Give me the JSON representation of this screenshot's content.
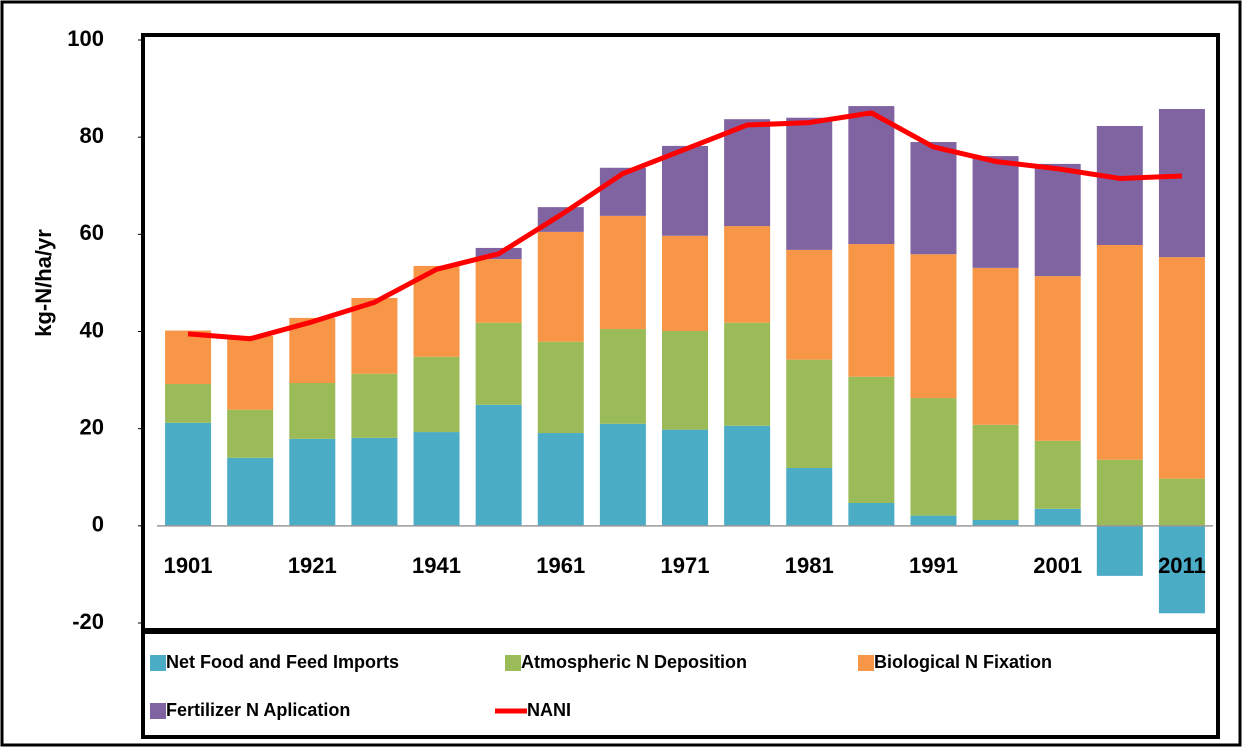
{
  "chart_data": {
    "type": "bar",
    "stacked": true,
    "y_label": "kg-N/ha/yr",
    "categories": [
      "1901",
      null,
      "1921",
      null,
      "1941",
      null,
      "1961",
      null,
      "1971",
      null,
      "1981",
      null,
      "1991",
      null,
      "2001",
      null,
      "2011"
    ],
    "series": [
      {
        "name": "Net Food and Feed Imports",
        "color": "#4bacc6",
        "values": [
          21.2,
          14,
          17.9,
          18.1,
          19.3,
          24.9,
          19.1,
          21,
          19.8,
          20.6,
          11.9,
          4.7,
          2.1,
          1.2,
          3.5,
          -10.3,
          -18
        ]
      },
      {
        "name": "Atmospheric N Deposition",
        "color": "#9bbb59",
        "values": [
          8,
          9.9,
          11.5,
          13.2,
          15.5,
          16.9,
          18.8,
          19.5,
          20.3,
          21.2,
          22.3,
          26,
          24.2,
          19.6,
          14,
          13.6,
          9.7
        ]
      },
      {
        "name": "Biological N Fixation",
        "color": "#f79646",
        "values": [
          11,
          15.2,
          13.4,
          15.6,
          18.7,
          13.1,
          22.6,
          23.3,
          19.6,
          19.9,
          22.6,
          27.3,
          29.6,
          32.3,
          33.9,
          44.2,
          45.6
        ]
      },
      {
        "name": "Fertilizer N Aplication",
        "color": "#8064a2",
        "values": [
          0,
          0,
          0,
          0,
          0,
          2.3,
          5.1,
          9.9,
          18.5,
          22,
          27.2,
          28.4,
          23.1,
          23,
          23.1,
          24.5,
          30.5
        ]
      },
      {
        "name": "NANI",
        "color": "#ff0000",
        "type": "line",
        "values": [
          39.5,
          38.5,
          42,
          46,
          52.8,
          56,
          64,
          72.5,
          77.5,
          82.5,
          83,
          85,
          78,
          75,
          73.5,
          71.5,
          72
        ]
      }
    ],
    "ylim": [
      -20,
      100
    ],
    "yticks": [
      -20,
      0,
      20,
      40,
      60,
      80,
      100
    ]
  }
}
